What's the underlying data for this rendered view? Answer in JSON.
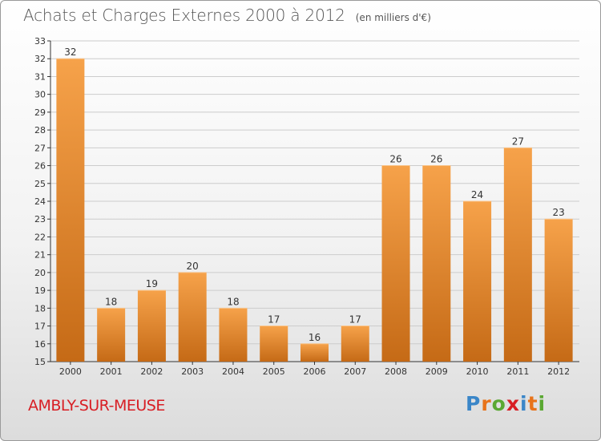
{
  "title": "Achats et Charges Externes 2000 à 2012",
  "unit_label": "(en milliers d'€)",
  "place_name": "AMBLY-SUR-MEUSE",
  "logo": {
    "text": "Proxiti",
    "letter_colors": [
      "#3a86c8",
      "#e8731a",
      "#5aa832",
      "#d81e24",
      "#3a86c8",
      "#e8731a",
      "#5aa832"
    ]
  },
  "colors": {
    "bar_top": "#f6a24a",
    "bar_bottom": "#c56a16",
    "axis": "#333333",
    "grid": "#cccccc",
    "place_name": "#d81e24",
    "title": "#555555"
  },
  "chart_data": {
    "type": "bar",
    "title": "Achats et Charges Externes 2000 à 2012",
    "subtitle": "(en milliers d'€)",
    "categories": [
      "2000",
      "2001",
      "2002",
      "2003",
      "2004",
      "2005",
      "2006",
      "2007",
      "2008",
      "2009",
      "2010",
      "2011",
      "2012"
    ],
    "values": [
      32,
      18,
      19,
      20,
      18,
      17,
      16,
      17,
      26,
      26,
      24,
      27,
      23
    ],
    "ylim": [
      15,
      33
    ],
    "yticks": [
      15,
      16,
      17,
      18,
      19,
      20,
      21,
      22,
      23,
      24,
      25,
      26,
      27,
      28,
      29,
      30,
      31,
      32,
      33
    ],
    "xlabel": "",
    "ylabel": "",
    "grid": true,
    "data_labels": true
  }
}
